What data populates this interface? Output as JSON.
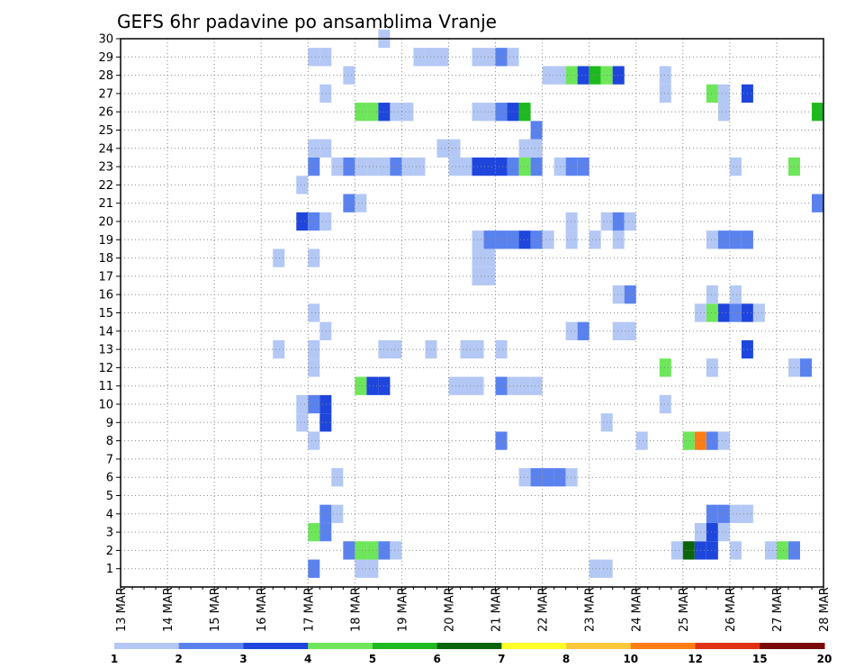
{
  "chart_data": {
    "type": "heatmap",
    "title": "GEFS 6hr padavine po ansamblima Vranje",
    "xlabel": "",
    "ylabel": "",
    "x_ticks": [
      "13 MAR",
      "14 MAR",
      "15 MAR",
      "16 MAR",
      "17 MAR",
      "18 MAR",
      "19 MAR",
      "20 MAR",
      "21 MAR",
      "22 MAR",
      "23 MAR",
      "24 MAR",
      "25 MAR",
      "26 MAR",
      "27 MAR",
      "28 MAR"
    ],
    "y_ticks": [
      "1",
      "2",
      "3",
      "4",
      "5",
      "6",
      "7",
      "8",
      "9",
      "10",
      "11",
      "12",
      "13",
      "14",
      "15",
      "16",
      "17",
      "18",
      "19",
      "20",
      "21",
      "22",
      "23",
      "24",
      "25",
      "26",
      "27",
      "28",
      "29",
      "30"
    ],
    "xlim_days": [
      13,
      28
    ],
    "ylim": [
      0,
      30
    ],
    "grid": true,
    "legend": {
      "placement": "bottom",
      "colors": [
        "#b4c8f5",
        "#5a82ee",
        "#1e46dc",
        "#6ee65a",
        "#1eb91e",
        "#0a640a",
        "#ffff28",
        "#ffc83c",
        "#ff7d14",
        "#e13214",
        "#780a0a"
      ],
      "labels": [
        "1",
        "2",
        "3",
        "4",
        "5",
        "6",
        "7",
        "8",
        "10",
        "12",
        "15",
        "20"
      ]
    },
    "cells_note": "each cell: [day_start, member, color_level_index]",
    "cells": [
      [
        17.0,
        1,
        1
      ],
      [
        18.0,
        1,
        0
      ],
      [
        18.25,
        1,
        0
      ],
      [
        23.0,
        1,
        0
      ],
      [
        23.25,
        1,
        0
      ],
      [
        17.75,
        2,
        1
      ],
      [
        18.0,
        2,
        3
      ],
      [
        18.25,
        2,
        3
      ],
      [
        18.5,
        2,
        1
      ],
      [
        18.75,
        2,
        0
      ],
      [
        24.75,
        2,
        0
      ],
      [
        25.0,
        2,
        5
      ],
      [
        25.25,
        2,
        2
      ],
      [
        25.5,
        2,
        2
      ],
      [
        26.0,
        2,
        0
      ],
      [
        26.75,
        2,
        0
      ],
      [
        27.0,
        2,
        3
      ],
      [
        27.25,
        2,
        1
      ],
      [
        17.0,
        3,
        3
      ],
      [
        17.25,
        3,
        1
      ],
      [
        25.25,
        3,
        0
      ],
      [
        25.5,
        3,
        2
      ],
      [
        25.75,
        3,
        0
      ],
      [
        17.25,
        4,
        1
      ],
      [
        17.5,
        4,
        0
      ],
      [
        25.5,
        4,
        1
      ],
      [
        25.75,
        4,
        1
      ],
      [
        26.0,
        4,
        0
      ],
      [
        26.25,
        4,
        0
      ],
      [
        17.5,
        6,
        0
      ],
      [
        21.5,
        6,
        0
      ],
      [
        21.75,
        6,
        1
      ],
      [
        22.0,
        6,
        1
      ],
      [
        22.25,
        6,
        1
      ],
      [
        22.5,
        6,
        0
      ],
      [
        17.0,
        8,
        0
      ],
      [
        21.0,
        8,
        1
      ],
      [
        24.0,
        8,
        0
      ],
      [
        25.0,
        8,
        3
      ],
      [
        25.25,
        8,
        8
      ],
      [
        25.5,
        8,
        1
      ],
      [
        25.75,
        8,
        0
      ],
      [
        17.25,
        9,
        2
      ],
      [
        16.75,
        9,
        0
      ],
      [
        23.25,
        9,
        0
      ],
      [
        16.75,
        10,
        0
      ],
      [
        17.0,
        10,
        1
      ],
      [
        17.25,
        10,
        2
      ],
      [
        24.5,
        10,
        0
      ],
      [
        18.0,
        11,
        3
      ],
      [
        18.25,
        11,
        2
      ],
      [
        18.5,
        11,
        2
      ],
      [
        20.0,
        11,
        0
      ],
      [
        20.25,
        11,
        0
      ],
      [
        20.5,
        11,
        0
      ],
      [
        21.0,
        11,
        1
      ],
      [
        21.25,
        11,
        0
      ],
      [
        21.5,
        11,
        0
      ],
      [
        21.75,
        11,
        0
      ],
      [
        17.0,
        12,
        0
      ],
      [
        24.5,
        12,
        3
      ],
      [
        25.5,
        12,
        0
      ],
      [
        27.25,
        12,
        0
      ],
      [
        27.5,
        12,
        1
      ],
      [
        16.25,
        13,
        0
      ],
      [
        17.0,
        13,
        0
      ],
      [
        18.5,
        13,
        0
      ],
      [
        18.75,
        13,
        0
      ],
      [
        19.5,
        13,
        0
      ],
      [
        20.25,
        13,
        0
      ],
      [
        20.5,
        13,
        0
      ],
      [
        21.0,
        13,
        0
      ],
      [
        26.25,
        13,
        2
      ],
      [
        17.25,
        14,
        0
      ],
      [
        22.5,
        14,
        0
      ],
      [
        22.75,
        14,
        1
      ],
      [
        23.5,
        14,
        0
      ],
      [
        23.75,
        14,
        0
      ],
      [
        17.0,
        15,
        0
      ],
      [
        25.25,
        15,
        0
      ],
      [
        25.5,
        15,
        3
      ],
      [
        25.75,
        15,
        2
      ],
      [
        26.0,
        15,
        1
      ],
      [
        26.25,
        15,
        2
      ],
      [
        26.5,
        15,
        0
      ],
      [
        23.5,
        16,
        0
      ],
      [
        23.75,
        16,
        1
      ],
      [
        25.5,
        16,
        0
      ],
      [
        26.0,
        16,
        0
      ],
      [
        20.5,
        17,
        0
      ],
      [
        20.75,
        17,
        0
      ],
      [
        16.25,
        18,
        0
      ],
      [
        17.0,
        18,
        0
      ],
      [
        20.5,
        18,
        0
      ],
      [
        20.75,
        18,
        0
      ],
      [
        20.5,
        19,
        0
      ],
      [
        20.75,
        19,
        1
      ],
      [
        21.0,
        19,
        1
      ],
      [
        21.25,
        19,
        1
      ],
      [
        21.5,
        19,
        2
      ],
      [
        21.75,
        19,
        1
      ],
      [
        22.0,
        19,
        0
      ],
      [
        22.5,
        19,
        0
      ],
      [
        23.0,
        19,
        0
      ],
      [
        23.5,
        19,
        0
      ],
      [
        25.5,
        19,
        0
      ],
      [
        25.75,
        19,
        1
      ],
      [
        26.0,
        19,
        1
      ],
      [
        26.25,
        19,
        1
      ],
      [
        16.75,
        20,
        2
      ],
      [
        17.0,
        20,
        1
      ],
      [
        17.25,
        20,
        0
      ],
      [
        22.5,
        20,
        0
      ],
      [
        23.25,
        20,
        0
      ],
      [
        23.5,
        20,
        1
      ],
      [
        23.75,
        20,
        0
      ],
      [
        17.75,
        21,
        1
      ],
      [
        18.0,
        21,
        0
      ],
      [
        27.75,
        21,
        1
      ],
      [
        28.0,
        21,
        2
      ],
      [
        16.75,
        22,
        0
      ],
      [
        17.0,
        23,
        1
      ],
      [
        17.5,
        23,
        0
      ],
      [
        17.75,
        23,
        1
      ],
      [
        18.0,
        23,
        0
      ],
      [
        18.25,
        23,
        0
      ],
      [
        18.5,
        23,
        0
      ],
      [
        18.75,
        23,
        1
      ],
      [
        19.0,
        23,
        0
      ],
      [
        19.25,
        23,
        0
      ],
      [
        20.0,
        23,
        0
      ],
      [
        20.25,
        23,
        0
      ],
      [
        20.5,
        23,
        2
      ],
      [
        20.75,
        23,
        2
      ],
      [
        21.0,
        23,
        2
      ],
      [
        21.25,
        23,
        1
      ],
      [
        21.5,
        23,
        3
      ],
      [
        21.75,
        23,
        1
      ],
      [
        22.25,
        23,
        0
      ],
      [
        22.5,
        23,
        1
      ],
      [
        22.75,
        23,
        1
      ],
      [
        26.0,
        23,
        0
      ],
      [
        27.25,
        23,
        3
      ],
      [
        17.0,
        24,
        0
      ],
      [
        17.25,
        24,
        0
      ],
      [
        19.75,
        24,
        0
      ],
      [
        20.0,
        24,
        0
      ],
      [
        21.5,
        24,
        0
      ],
      [
        21.75,
        24,
        0
      ],
      [
        21.75,
        25,
        1
      ],
      [
        18.0,
        26,
        3
      ],
      [
        18.25,
        26,
        3
      ],
      [
        18.5,
        26,
        2
      ],
      [
        18.75,
        26,
        0
      ],
      [
        19.0,
        26,
        0
      ],
      [
        20.5,
        26,
        0
      ],
      [
        20.75,
        26,
        0
      ],
      [
        21.0,
        26,
        1
      ],
      [
        21.25,
        26,
        2
      ],
      [
        21.5,
        26,
        4
      ],
      [
        25.75,
        26,
        0
      ],
      [
        27.75,
        26,
        4
      ],
      [
        28.0,
        26,
        0
      ],
      [
        17.25,
        27,
        0
      ],
      [
        24.5,
        27,
        0
      ],
      [
        25.5,
        27,
        3
      ],
      [
        25.75,
        27,
        0
      ],
      [
        26.25,
        27,
        2
      ],
      [
        17.75,
        28,
        0
      ],
      [
        22.0,
        28,
        0
      ],
      [
        22.25,
        28,
        0
      ],
      [
        22.5,
        28,
        3
      ],
      [
        22.75,
        28,
        2
      ],
      [
        23.0,
        28,
        4
      ],
      [
        23.25,
        28,
        3
      ],
      [
        23.5,
        28,
        2
      ],
      [
        24.5,
        28,
        0
      ],
      [
        17.0,
        29,
        0
      ],
      [
        17.25,
        29,
        0
      ],
      [
        19.25,
        29,
        0
      ],
      [
        19.5,
        29,
        0
      ],
      [
        19.75,
        29,
        0
      ],
      [
        20.5,
        29,
        0
      ],
      [
        20.75,
        29,
        0
      ],
      [
        21.0,
        29,
        1
      ],
      [
        21.25,
        29,
        0
      ],
      [
        18.5,
        30,
        0
      ]
    ]
  }
}
